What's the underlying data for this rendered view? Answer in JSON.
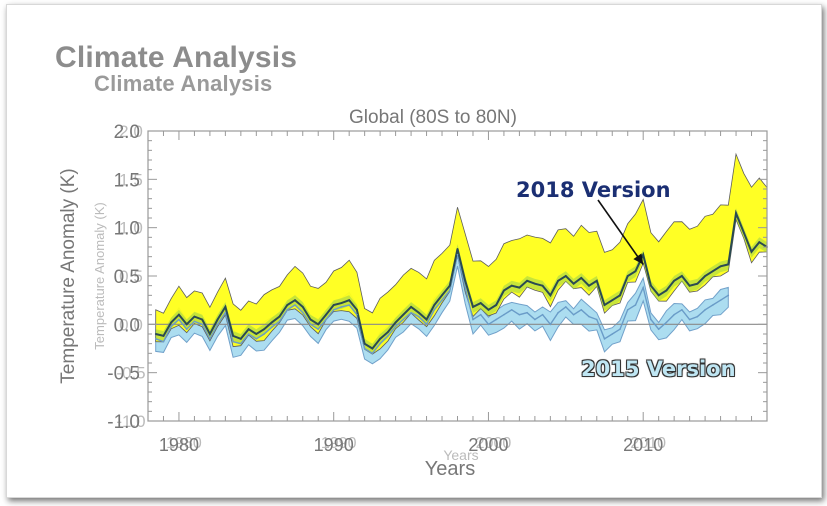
{
  "headings": {
    "main": "Climate Analysis",
    "secondary": "Climate Analysis"
  },
  "chart_data": {
    "type": "area",
    "title": "Global (80S to 80N)",
    "xlabel": "Years",
    "ylabel": "Temperature Anomaly (K)",
    "xlim": [
      1978,
      2018
    ],
    "ylim": [
      -1.0,
      2.0
    ],
    "xticks": [
      1980,
      1990,
      2000,
      2010
    ],
    "yticks": [
      -1.0,
      -0.5,
      0.0,
      0.5,
      1.0,
      1.5,
      2.0
    ],
    "ytick_labels": [
      "-1.0",
      "-0.5",
      "0.0",
      "0.5",
      "1.0",
      "1.5",
      "2.0"
    ],
    "ghost_labels": {
      "xlabel": "Years",
      "ylabel": "Temperature Anomaly (K)",
      "ytick_labels": [
        "-1.0",
        "-0.5",
        "0.0",
        "0.5",
        "1.0",
        "1.5",
        "2.0"
      ],
      "xtick_labels": [
        "1980",
        "1990",
        "2000",
        "2010"
      ]
    },
    "grid": false,
    "annotations": [
      {
        "text": "2018 Version",
        "color": "#1b2f73",
        "arrow_to": {
          "x": 2010.0,
          "y": 0.62
        }
      },
      {
        "text": "2015 Version",
        "color": "#bfe6f3"
      }
    ],
    "series": [
      {
        "name": "2018 Version",
        "color_fill": "#ffff1a",
        "color_line": "#2a4a52",
        "x": [
          1978.5,
          1979.0,
          1979.5,
          1980.0,
          1980.5,
          1981.0,
          1981.5,
          1982.0,
          1982.5,
          1983.0,
          1983.5,
          1984.0,
          1984.5,
          1985.0,
          1985.5,
          1986.0,
          1986.5,
          1987.0,
          1987.5,
          1988.0,
          1988.5,
          1989.0,
          1989.5,
          1990.0,
          1990.5,
          1991.0,
          1991.5,
          1992.0,
          1992.5,
          1993.0,
          1993.5,
          1994.0,
          1994.5,
          1995.0,
          1995.5,
          1996.0,
          1996.5,
          1997.0,
          1997.5,
          1998.0,
          1998.5,
          1999.0,
          1999.5,
          2000.0,
          2000.5,
          2001.0,
          2001.5,
          2002.0,
          2002.5,
          2003.0,
          2003.5,
          2004.0,
          2004.5,
          2005.0,
          2005.5,
          2006.0,
          2006.5,
          2007.0,
          2007.5,
          2008.0,
          2008.5,
          2009.0,
          2009.5,
          2010.0,
          2010.5,
          2011.0,
          2011.5,
          2012.0,
          2012.5,
          2013.0,
          2013.5,
          2014.0,
          2014.5,
          2015.0,
          2015.5,
          2016.0,
          2016.5,
          2017.0,
          2017.5,
          2018.0
        ],
        "y": [
          -0.1,
          -0.12,
          0.02,
          0.1,
          0.0,
          0.08,
          0.05,
          -0.1,
          0.05,
          0.18,
          -0.12,
          -0.15,
          -0.05,
          -0.1,
          -0.05,
          0.02,
          0.08,
          0.2,
          0.25,
          0.18,
          0.05,
          0.0,
          0.1,
          0.2,
          0.22,
          0.25,
          0.15,
          -0.2,
          -0.25,
          -0.15,
          -0.08,
          0.02,
          0.1,
          0.18,
          0.12,
          0.05,
          0.2,
          0.3,
          0.4,
          0.78,
          0.45,
          0.18,
          0.22,
          0.15,
          0.2,
          0.35,
          0.4,
          0.38,
          0.45,
          0.42,
          0.4,
          0.3,
          0.45,
          0.5,
          0.42,
          0.48,
          0.4,
          0.45,
          0.2,
          0.25,
          0.3,
          0.5,
          0.55,
          0.72,
          0.4,
          0.3,
          0.35,
          0.45,
          0.5,
          0.4,
          0.42,
          0.5,
          0.55,
          0.6,
          0.62,
          1.15,
          0.95,
          0.75,
          0.85,
          0.8
        ]
      },
      {
        "name": "2015 Version",
        "color_fill": "#a8dcf0",
        "color_line": "#6a9cc8",
        "x": [
          1978.5,
          1979.0,
          1979.5,
          1980.0,
          1980.5,
          1981.0,
          1981.5,
          1982.0,
          1982.5,
          1983.0,
          1983.5,
          1984.0,
          1984.5,
          1985.0,
          1985.5,
          1986.0,
          1986.5,
          1987.0,
          1987.5,
          1988.0,
          1988.5,
          1989.0,
          1989.5,
          1990.0,
          1990.5,
          1991.0,
          1991.5,
          1992.0,
          1992.5,
          1993.0,
          1993.5,
          1994.0,
          1994.5,
          1995.0,
          1995.5,
          1996.0,
          1996.5,
          1997.0,
          1997.5,
          1998.0,
          1998.5,
          1999.0,
          1999.5,
          2000.0,
          2000.5,
          2001.0,
          2001.5,
          2002.0,
          2002.5,
          2003.0,
          2003.5,
          2004.0,
          2004.5,
          2005.0,
          2005.5,
          2006.0,
          2006.5,
          2007.0,
          2007.5,
          2008.0,
          2008.5,
          2009.0,
          2009.5,
          2010.0,
          2010.5,
          2011.0,
          2011.5,
          2012.0,
          2012.5,
          2013.0,
          2013.5,
          2014.0,
          2014.5,
          2015.0,
          2015.5
        ],
        "y": [
          -0.15,
          -0.18,
          -0.02,
          0.05,
          -0.05,
          0.03,
          0.0,
          -0.15,
          0.0,
          0.12,
          -0.18,
          -0.2,
          -0.1,
          -0.15,
          -0.1,
          -0.03,
          0.03,
          0.15,
          0.2,
          0.12,
          0.0,
          -0.05,
          0.05,
          0.15,
          0.18,
          0.2,
          0.1,
          -0.25,
          -0.3,
          -0.2,
          -0.12,
          -0.02,
          0.05,
          0.12,
          0.08,
          0.0,
          0.15,
          0.25,
          0.35,
          0.72,
          0.38,
          0.05,
          0.1,
          0.0,
          0.05,
          0.1,
          0.15,
          0.1,
          0.12,
          0.05,
          0.1,
          0.0,
          0.12,
          0.18,
          0.1,
          0.15,
          0.08,
          0.05,
          -0.15,
          -0.1,
          -0.05,
          0.15,
          0.2,
          0.38,
          0.05,
          -0.05,
          0.02,
          0.1,
          0.15,
          0.05,
          0.08,
          0.15,
          0.2,
          0.25,
          0.3
        ]
      }
    ]
  }
}
